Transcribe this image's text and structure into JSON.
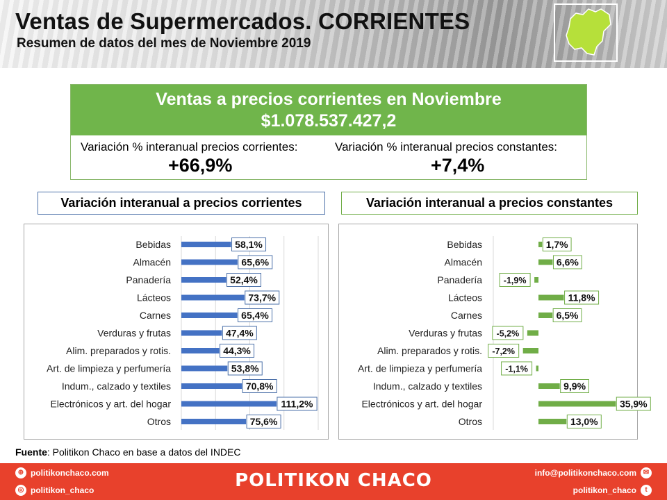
{
  "header": {
    "title": "Ventas de Supermercados. CORRIENTES",
    "subtitle": "Resumen de datos del mes de Noviembre 2019"
  },
  "summary": {
    "headline": "Ventas a precios corrientes en Noviembre",
    "total": "$1.078.537.427,2",
    "current_label": "Variación % interanual precios corrientes:",
    "current_value": "+66,9%",
    "constant_label": "Variación % interanual precios constantes:",
    "constant_value": "+7,4%"
  },
  "colors": {
    "green": "#70b54b",
    "blue_bar": "#4472c4",
    "green_bar": "#70ad47",
    "footer": "#e8412c"
  },
  "chart_data": [
    {
      "type": "bar",
      "orientation": "horizontal",
      "title": "Variación interanual a precios corrientes",
      "categories": [
        "Bebidas",
        "Almacén",
        "Panadería",
        "Lácteos",
        "Carnes",
        "Verduras y frutas",
        "Alim. preparados y rotis.",
        "Art. de limpieza y perfumería",
        "Indum., calzado y textiles",
        "Electrónicos y art. del hogar",
        "Otros"
      ],
      "values": [
        58.1,
        65.6,
        52.4,
        73.7,
        65.4,
        47.4,
        44.3,
        53.8,
        70.8,
        111.2,
        75.6
      ],
      "labels": [
        "58,1%",
        "65,6%",
        "52,4%",
        "73,7%",
        "65,4%",
        "47,4%",
        "44,3%",
        "53,8%",
        "70,8%",
        "111,2%",
        "75,6%"
      ],
      "xlim": [
        0,
        160
      ],
      "grid": true,
      "color": "#4472c4"
    },
    {
      "type": "bar",
      "orientation": "horizontal",
      "title": "Variación interanual a precios constantes",
      "categories": [
        "Bebidas",
        "Almacén",
        "Panadería",
        "Lácteos",
        "Carnes",
        "Verduras y frutas",
        "Alim. preparados y rotis.",
        "Art. de limpieza y perfumería",
        "Indum., calzado y textiles",
        "Electrónicos y art. del hogar",
        "Otros"
      ],
      "values": [
        1.7,
        6.6,
        -1.9,
        11.8,
        6.5,
        -5.2,
        -7.2,
        -1.1,
        9.9,
        35.9,
        13.0
      ],
      "labels": [
        "1,7%",
        "6,6%",
        "-1,9%",
        "11,8%",
        "6,5%",
        "-5,2%",
        "-7,2%",
        "-1,1%",
        "9,9%",
        "35,9%",
        "13,0%"
      ],
      "xlim": [
        -10,
        40
      ],
      "grid": false,
      "color": "#70ad47"
    }
  ],
  "source": {
    "label": "Fuente",
    "text": ": Politikon Chaco en base a datos del INDEC"
  },
  "footer": {
    "website": "politikonchaco.com",
    "instagram": "politikon_chaco",
    "brand": "POLITIKON CHACO",
    "email": "info@politikonchaco.com",
    "twitter": "politikon_chaco"
  }
}
